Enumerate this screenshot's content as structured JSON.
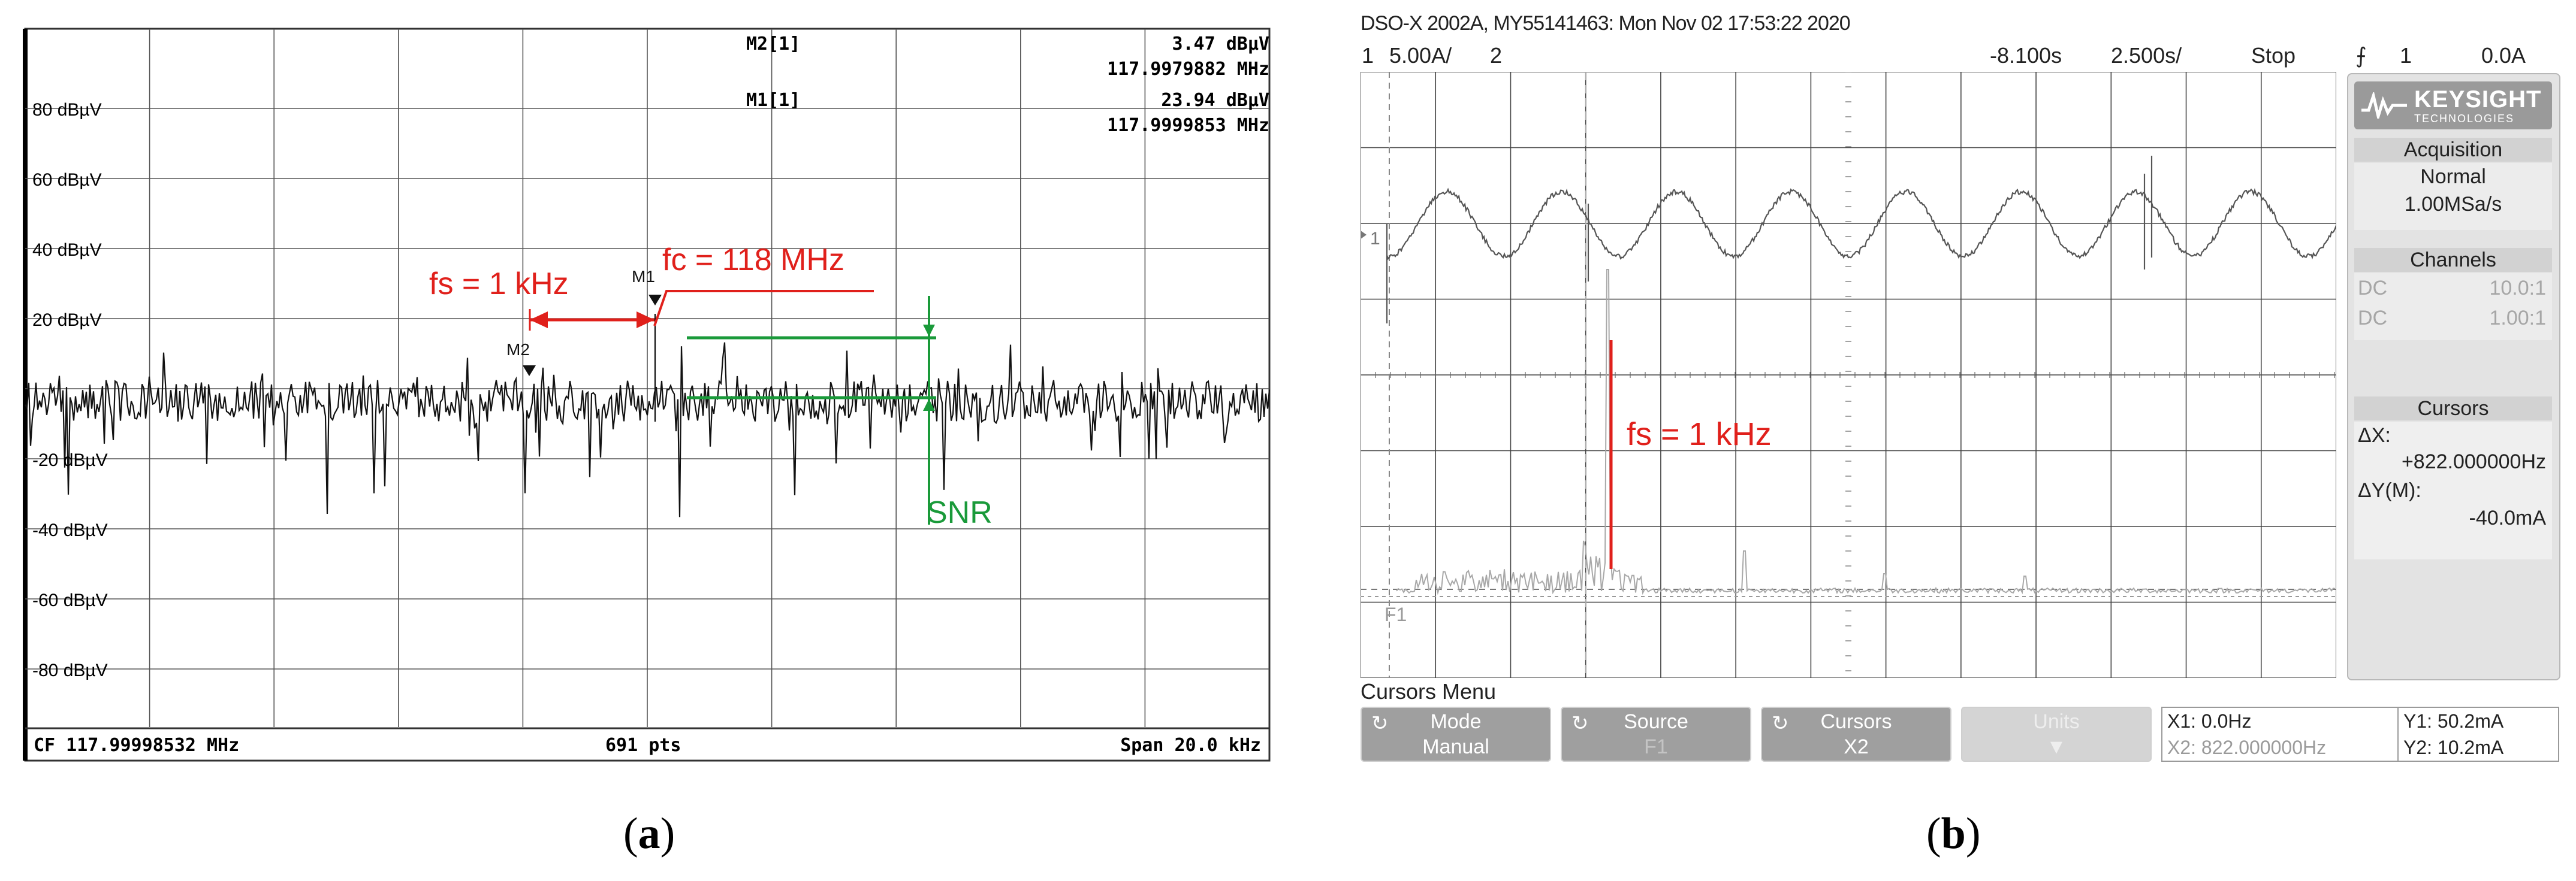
{
  "panel_a": {
    "markers": {
      "m2_label": "M2[1]",
      "m2_level": "3.47 dBµV",
      "m2_freq": "117.9979882 MHz",
      "m1_label": "M1[1]",
      "m1_level": "23.94 dBµV",
      "m1_freq": "117.9999853 MHz"
    },
    "y_ticks": [
      "80 dBµV",
      "60 dBµV",
      "40 dBµV",
      "20 dBµV",
      "-20 dBµV",
      "-40 dBµV",
      "-60 dBµV",
      "-80 dBµV"
    ],
    "trace_markers": {
      "m1": "M1",
      "m2": "M2"
    },
    "annotations": {
      "fs": "fs = 1 kHz",
      "fc": "fc = 118 MHz",
      "snr": "SNR"
    },
    "bottom": {
      "cf": "CF 117.99998532 MHz",
      "pts": "691 pts",
      "span": "Span 20.0 kHz"
    },
    "colors": {
      "annotation_red": "#e0201b",
      "annotation_green": "#1a9a3a"
    }
  },
  "panel_b": {
    "title": "DSO-X 2002A, MY55141463: Mon Nov 02 17:53:22 2020",
    "top_bar": {
      "ch1": "1",
      "ch1_scale": "5.00A/",
      "ch2": "2",
      "time_offset": "-8.100s",
      "time_scale": "2.500s/",
      "run_state": "Stop",
      "trigger_ch": "1",
      "trigger_level": "0.0A"
    },
    "waveform_labels": {
      "ch1": "1",
      "math": "F1"
    },
    "annotation": "fs = 1 kHz",
    "side_panel": {
      "brand": "KEYSIGHT",
      "brand_sub": "TECHNOLOGIES",
      "acquisition_title": "Acquisition",
      "acquisition_mode": "Normal",
      "acquisition_rate": "1.00MSa/s",
      "channels_title": "Channels",
      "channels": [
        {
          "coupling": "DC",
          "probe": "10.0:1"
        },
        {
          "coupling": "DC",
          "probe": "1.00:1"
        }
      ],
      "cursors_title": "Cursors",
      "dx_label": "ΔX:",
      "dx_value": "+822.000000Hz",
      "dy_label": "ΔY(M):",
      "dy_value": "-40.0mA"
    },
    "menu_title": "Cursors Menu",
    "softkeys": [
      {
        "label": "Mode",
        "value": "Manual"
      },
      {
        "label": "Source",
        "value": "F1"
      },
      {
        "label": "Cursors",
        "value": "X2"
      },
      {
        "label": "Units",
        "value": ""
      }
    ],
    "cursor_readout": {
      "x1": "X1: 0.0Hz",
      "x2": "X2: 822.000000Hz",
      "y1": "Y1: 50.2mA",
      "y2": "Y2: 10.2mA"
    }
  },
  "captions": {
    "a": "a",
    "b": "b"
  }
}
